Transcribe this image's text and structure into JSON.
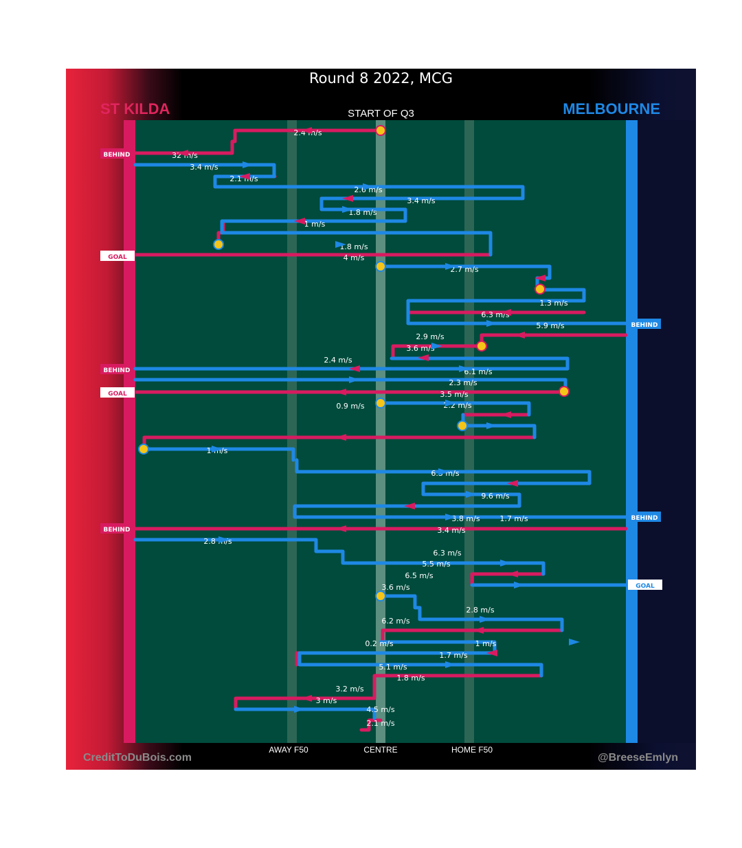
{
  "title": "Round 8 2022, MCG",
  "quarter": "START OF Q3",
  "teams": {
    "left": {
      "name": "ST KILDA",
      "color": "#d81b60"
    },
    "right": {
      "name": "MELBOURNE",
      "color": "#1e88e5"
    }
  },
  "colors": {
    "field": "#004b3c",
    "centre_band": "#5c8f80",
    "f50_band": "#2e6655",
    "ball": "#f5c518"
  },
  "axis_labels": {
    "away_f50": "AWAY F50",
    "centre": "CENTRE",
    "home_f50": "HOME F50"
  },
  "credits": {
    "left": "CreditToDuBois.com",
    "right": "@BreeseEmlyn"
  },
  "chart_data": {
    "type": "line",
    "description_of_axes": "Horizontal position from St Kilda end (left) to Melbourne end (right); chains run top to bottom in time order.",
    "segments": [
      {
        "team": "stkilda",
        "speed": "2.4 m/s"
      },
      {
        "team": "stkilda",
        "speed": "32 m/s"
      },
      {
        "team": "melbourne",
        "speed": "3.4 m/s"
      },
      {
        "team": "stkilda",
        "speed": "2.1 m/s"
      },
      {
        "team": "melbourne",
        "speed": "2.6 m/s"
      },
      {
        "team": "stkilda",
        "speed": "3.4 m/s"
      },
      {
        "team": "melbourne",
        "speed": "1.8 m/s"
      },
      {
        "team": "stkilda",
        "speed": "1 m/s"
      },
      {
        "team": "melbourne",
        "speed": "1.8 m/s"
      },
      {
        "team": "stkilda",
        "speed": "4 m/s"
      },
      {
        "team": "melbourne",
        "speed": "2.7 m/s"
      },
      {
        "team": "melbourne",
        "speed": "1.3 m/s"
      },
      {
        "team": "stkilda",
        "speed": "6.3 m/s"
      },
      {
        "team": "melbourne",
        "speed": "5.9 m/s"
      },
      {
        "team": "stkilda",
        "speed": "2.9 m/s"
      },
      {
        "team": "stkilda",
        "speed": "3.6 m/s"
      },
      {
        "team": "melbourne",
        "speed": "2.4 m/s"
      },
      {
        "team": "stkilda",
        "speed": "6.1 m/s"
      },
      {
        "team": "melbourne",
        "speed": "2.3 m/s"
      },
      {
        "team": "stkilda",
        "speed": "3.5 m/s"
      },
      {
        "team": "melbourne",
        "speed": "2.2 m/s"
      },
      {
        "team": "stkilda",
        "speed": "0.9 m/s"
      },
      {
        "team": "melbourne",
        "speed": "1 m/s"
      },
      {
        "team": "stkilda",
        "speed": "6.3 m/s"
      },
      {
        "team": "melbourne",
        "speed": "9.6 m/s"
      },
      {
        "team": "melbourne",
        "speed": "1.7 m/s"
      },
      {
        "team": "stkilda",
        "speed": "3.8 m/s"
      },
      {
        "team": "melbourne",
        "speed": "3.4 m/s"
      },
      {
        "team": "stkilda",
        "speed": "2.8 m/s"
      },
      {
        "team": "melbourne",
        "speed": "6.3 m/s"
      },
      {
        "team": "stkilda",
        "speed": "5.5 m/s"
      },
      {
        "team": "melbourne",
        "speed": "6.5 m/s"
      },
      {
        "team": "melbourne",
        "speed": "3.6 m/s"
      },
      {
        "team": "stkilda",
        "speed": "2.8 m/s"
      },
      {
        "team": "melbourne",
        "speed": "6.2 m/s"
      },
      {
        "team": "melbourne",
        "speed": "0.2 m/s"
      },
      {
        "team": "melbourne",
        "speed": "1 m/s"
      },
      {
        "team": "stkilda",
        "speed": "1.7 m/s"
      },
      {
        "team": "melbourne",
        "speed": "5.1 m/s"
      },
      {
        "team": "stkilda",
        "speed": "1.8 m/s"
      },
      {
        "team": "melbourne",
        "speed": "3.2 m/s"
      },
      {
        "team": "stkilda",
        "speed": "3 m/s"
      },
      {
        "team": "stkilda",
        "speed": "4.5 m/s"
      },
      {
        "team": "melbourne",
        "speed": "2.1 m/s"
      }
    ],
    "outcomes": [
      {
        "side": "left",
        "label": "BEHIND"
      },
      {
        "side": "left",
        "label": "GOAL"
      },
      {
        "side": "right",
        "label": "BEHIND"
      },
      {
        "side": "left",
        "label": "BEHIND"
      },
      {
        "side": "left",
        "label": "GOAL"
      },
      {
        "side": "right",
        "label": "BEHIND"
      },
      {
        "side": "left",
        "label": "BEHIND"
      },
      {
        "side": "right",
        "label": "GOAL"
      }
    ]
  }
}
